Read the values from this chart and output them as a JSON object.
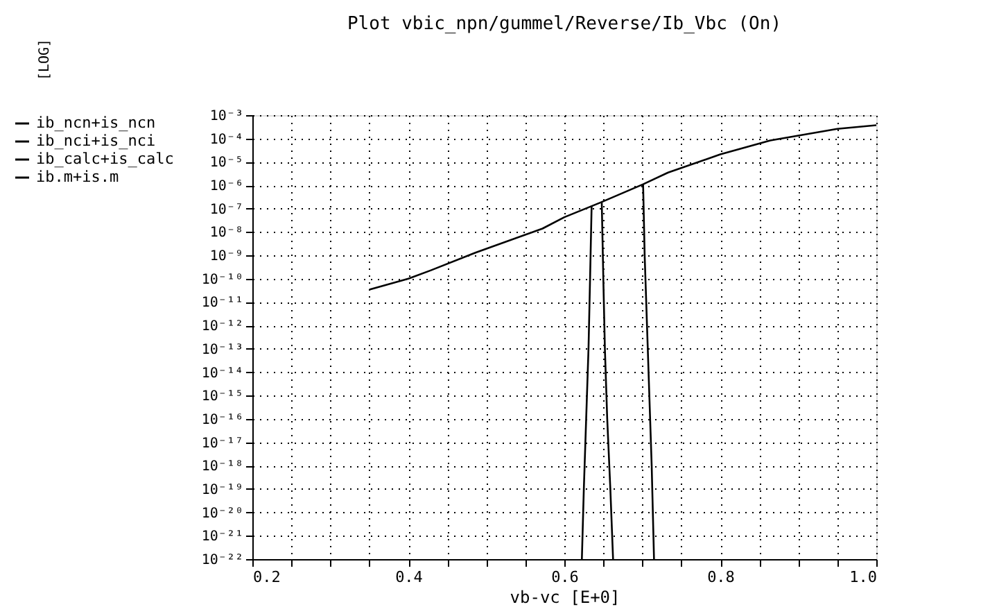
{
  "chart_data": {
    "type": "line",
    "title": "Plot vbic_npn/gummel/Reverse/Ib_Vbc (On)",
    "xlabel": "vb-vc  [E+0]",
    "annotations": [
      "[LOG]"
    ],
    "log": "y",
    "grid": true,
    "legend": "left",
    "marker": "none",
    "line_style": "solid",
    "xlim": [
      0.2,
      1.0
    ],
    "xticks": [
      {
        "value": 0.2,
        "label": "0.2"
      },
      {
        "value": 0.25,
        "label": null
      },
      {
        "value": 0.3,
        "label": null
      },
      {
        "value": 0.35,
        "label": null
      },
      {
        "value": 0.4,
        "label": "0.4"
      },
      {
        "value": 0.45,
        "label": null
      },
      {
        "value": 0.5,
        "label": null
      },
      {
        "value": 0.55,
        "label": null
      },
      {
        "value": 0.6,
        "label": "0.6"
      },
      {
        "value": 0.65,
        "label": null
      },
      {
        "value": 0.7,
        "label": null
      },
      {
        "value": 0.75,
        "label": null
      },
      {
        "value": 0.8,
        "label": "0.8"
      },
      {
        "value": 0.85,
        "label": null
      },
      {
        "value": 0.9,
        "label": null
      },
      {
        "value": 0.95,
        "label": null
      },
      {
        "value": 1.0,
        "label": "1.0"
      }
    ],
    "ylim": [
      1e-22,
      0.001
    ],
    "yticks": [
      {
        "value": 0.001,
        "label": "10⁻³"
      },
      {
        "value": 0.0001,
        "label": "10⁻⁴"
      },
      {
        "value": 1e-05,
        "label": "10⁻⁵"
      },
      {
        "value": 1e-06,
        "label": "10⁻⁶"
      },
      {
        "value": 1e-07,
        "label": "10⁻⁷"
      },
      {
        "value": 1e-08,
        "label": "10⁻⁸"
      },
      {
        "value": 1e-09,
        "label": "10⁻⁹"
      },
      {
        "value": 1e-10,
        "label": "10⁻¹⁰"
      },
      {
        "value": 1e-11,
        "label": "10⁻¹¹"
      },
      {
        "value": 1e-12,
        "label": "10⁻¹²"
      },
      {
        "value": 1e-13,
        "label": "10⁻¹³"
      },
      {
        "value": 1e-14,
        "label": "10⁻¹⁴"
      },
      {
        "value": 1e-15,
        "label": "10⁻¹⁵"
      },
      {
        "value": 1e-16,
        "label": "10⁻¹⁶"
      },
      {
        "value": 1e-17,
        "label": "10⁻¹⁷"
      },
      {
        "value": 1e-18,
        "label": "10⁻¹⁸"
      },
      {
        "value": 1e-19,
        "label": "10⁻¹⁹"
      },
      {
        "value": 1e-20,
        "label": "10⁻²⁰"
      },
      {
        "value": 1e-21,
        "label": "10⁻²¹"
      },
      {
        "value": 1e-22,
        "label": "10⁻²²"
      }
    ],
    "series": [
      {
        "name": "ib_ncn+is_ncn",
        "color": "#000000",
        "x": [
          0.635,
          0.633,
          0.631,
          0.628,
          0.625,
          0.6225
        ],
        "values": [
          1.3e-07,
          1e-10,
          1e-13,
          1e-16,
          1e-19,
          1e-22
        ]
      },
      {
        "name": "ib_nci+is_nci",
        "color": "#000000",
        "x": [
          0.648,
          0.65,
          0.652,
          0.655,
          0.659,
          0.6625
        ],
        "values": [
          1.8e-07,
          1e-10,
          1e-13,
          1e-16,
          1e-19,
          1e-22
        ]
      },
      {
        "name": "ib_calc+is_calc",
        "color": "#000000",
        "x": [
          0.701,
          0.703,
          0.706,
          0.709,
          0.712,
          0.715
        ],
        "values": [
          1.1e-06,
          1e-09,
          1e-12,
          1e-15,
          1e-18,
          1e-22
        ]
      },
      {
        "name": "ib.m+is.m",
        "color": "#000000",
        "x": [
          0.35,
          0.4,
          0.429,
          0.486,
          0.572,
          0.6,
          0.646,
          0.701,
          0.733,
          0.8,
          0.864,
          0.95,
          1.0
        ],
        "values": [
          3.4e-11,
          1e-10,
          2.3e-10,
          1.3e-09,
          1.4e-08,
          4.3e-08,
          1.8e-07,
          1.1e-06,
          3.5e-06,
          2.1e-05,
          8.3e-05,
          0.00026,
          0.00037
        ]
      }
    ]
  }
}
